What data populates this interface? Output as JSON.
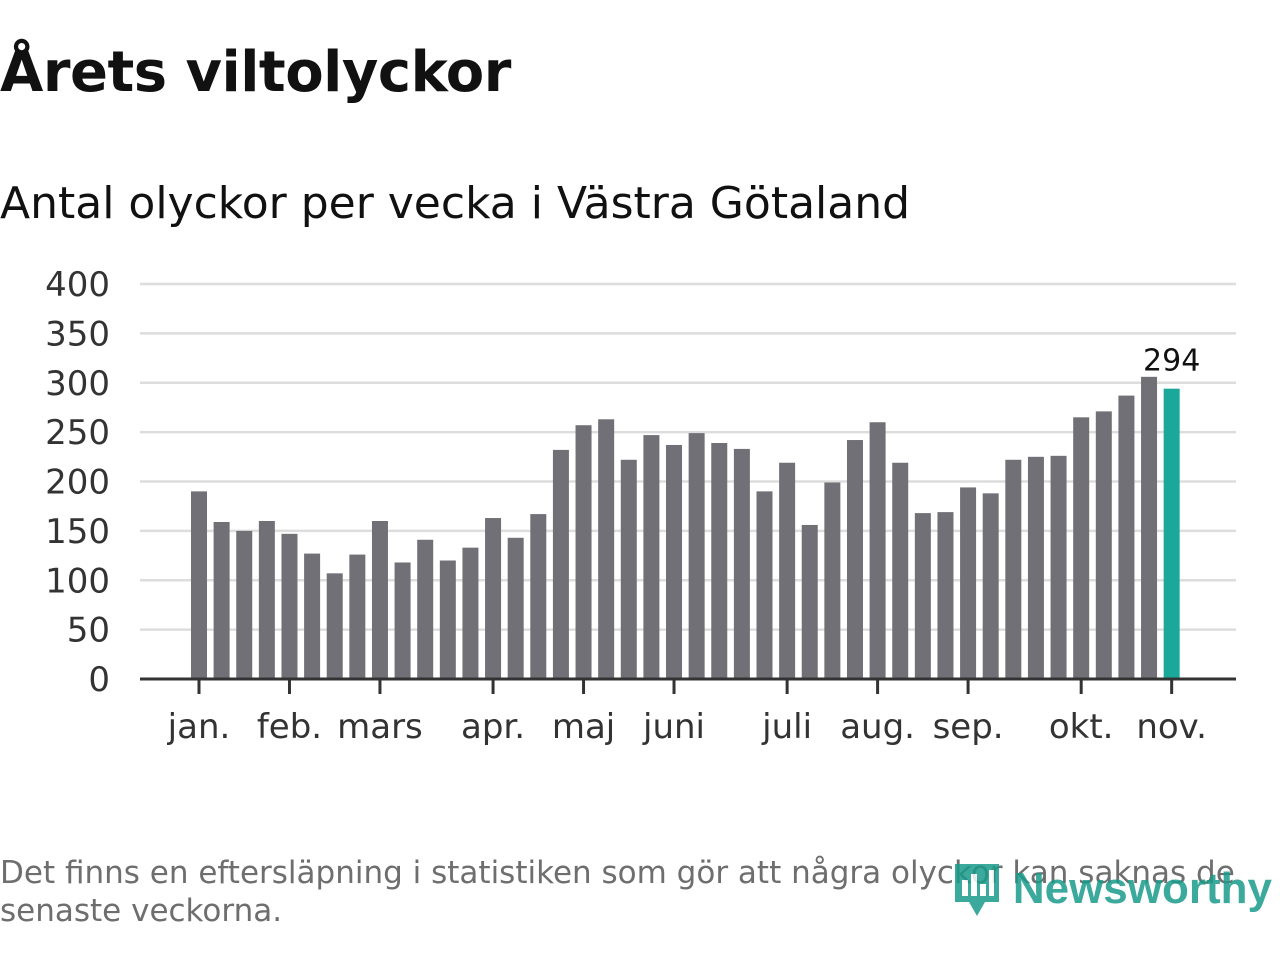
{
  "title": "Årets viltolyckor",
  "subtitle": "Antal olyckor per vecka i Västra Götaland",
  "footnote": "Det finns en eftersläpning i statistiken som gör att några olyckor kan saknas de senaste veckorna.",
  "brand": {
    "name": "Newsworthy",
    "logo_icon": "bar-chart-icon"
  },
  "colors": {
    "bar": "#717077",
    "highlight": "#1aa89a",
    "grid": "#dddddd",
    "axis": "#333333",
    "brand": "#1a9b8a"
  },
  "chart_data": {
    "type": "bar",
    "title": "Årets viltolyckor",
    "subtitle": "Antal olyckor per vecka i Västra Götaland",
    "xlabel": "",
    "ylabel": "",
    "ylim": [
      0,
      400
    ],
    "yticks": [
      0,
      50,
      100,
      150,
      200,
      250,
      300,
      350,
      400
    ],
    "grid": true,
    "values": [
      190,
      159,
      150,
      160,
      147,
      127,
      107,
      126,
      160,
      118,
      141,
      120,
      133,
      163,
      143,
      167,
      232,
      257,
      263,
      222,
      247,
      237,
      249,
      239,
      233,
      190,
      219,
      156,
      199,
      242,
      260,
      219,
      168,
      169,
      194,
      188,
      222,
      225,
      226,
      265,
      271,
      287,
      306,
      294
    ],
    "highlight_index": 43,
    "highlight_label": "294",
    "month_labels": [
      {
        "label": "jan.",
        "at_index": 0
      },
      {
        "label": "feb.",
        "at_index": 4
      },
      {
        "label": "mars",
        "at_index": 8
      },
      {
        "label": "apr.",
        "at_index": 13
      },
      {
        "label": "maj",
        "at_index": 17
      },
      {
        "label": "juni",
        "at_index": 21
      },
      {
        "label": "juli",
        "at_index": 26
      },
      {
        "label": "aug.",
        "at_index": 30
      },
      {
        "label": "sep.",
        "at_index": 34
      },
      {
        "label": "okt.",
        "at_index": 39
      },
      {
        "label": "nov.",
        "at_index": 43
      }
    ]
  }
}
